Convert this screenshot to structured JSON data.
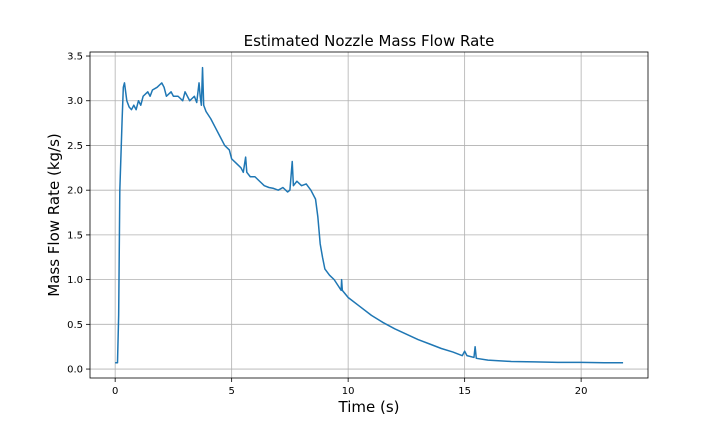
{
  "chart_data": {
    "type": "line",
    "title": "Estimated Nozzle Mass Flow Rate",
    "x_label": "Time (s)",
    "y_label": "Mass Flow Rate (kg/s)",
    "x": [
      0.0,
      0.1,
      0.15,
      0.2,
      0.3,
      0.35,
      0.4,
      0.5,
      0.6,
      0.7,
      0.8,
      0.9,
      1.0,
      1.1,
      1.2,
      1.4,
      1.5,
      1.6,
      1.8,
      2.0,
      2.1,
      2.2,
      2.4,
      2.5,
      2.7,
      2.9,
      3.0,
      3.2,
      3.4,
      3.5,
      3.6,
      3.65,
      3.7,
      3.75,
      3.8,
      3.9,
      4.1,
      4.3,
      4.5,
      4.7,
      4.9,
      5.0,
      5.2,
      5.4,
      5.5,
      5.6,
      5.65,
      5.8,
      6.0,
      6.2,
      6.4,
      6.6,
      6.8,
      7.0,
      7.2,
      7.4,
      7.5,
      7.6,
      7.65,
      7.8,
      8.0,
      8.2,
      8.4,
      8.6,
      8.7,
      8.8,
      8.9,
      9.0,
      9.2,
      9.4,
      9.6,
      9.7,
      9.72,
      9.75,
      10,
      10.5,
      11,
      11.5,
      12,
      12.5,
      13,
      13.5,
      14,
      14.5,
      14.9,
      15.0,
      15.1,
      15.4,
      15.45,
      15.5,
      16,
      17,
      18,
      19,
      20,
      21,
      21.8
    ],
    "series": [
      {
        "name": "Mass Flow Rate",
        "color": "#1f77b4",
        "values": [
          0.07,
          0.07,
          0.6,
          2.0,
          2.8,
          3.15,
          3.2,
          3.0,
          2.93,
          2.9,
          2.95,
          2.9,
          3.0,
          2.95,
          3.05,
          3.1,
          3.05,
          3.12,
          3.15,
          3.2,
          3.15,
          3.05,
          3.1,
          3.05,
          3.05,
          3.0,
          3.1,
          3.0,
          3.05,
          2.98,
          3.2,
          3.05,
          2.95,
          3.37,
          2.95,
          2.88,
          2.8,
          2.7,
          2.6,
          2.5,
          2.45,
          2.35,
          2.3,
          2.25,
          2.2,
          2.37,
          2.2,
          2.15,
          2.15,
          2.1,
          2.05,
          2.03,
          2.02,
          2.0,
          2.03,
          1.98,
          2.0,
          2.32,
          2.05,
          2.1,
          2.05,
          2.07,
          2.0,
          1.9,
          1.7,
          1.4,
          1.25,
          1.12,
          1.05,
          1.0,
          0.92,
          0.88,
          1.0,
          0.88,
          0.8,
          0.7,
          0.6,
          0.52,
          0.45,
          0.39,
          0.33,
          0.28,
          0.23,
          0.19,
          0.15,
          0.2,
          0.15,
          0.13,
          0.25,
          0.12,
          0.1,
          0.085,
          0.08,
          0.075,
          0.075,
          0.07,
          0.07
        ]
      }
    ],
    "xlim": [
      -1.08,
      22.87
    ],
    "ylim": [
      -0.1,
      3.545
    ],
    "xticks": [
      0,
      5,
      10,
      15,
      20
    ],
    "yticks": [
      {
        "value": 0,
        "label": "0.0"
      },
      {
        "value": 0.5,
        "label": "0.5"
      },
      {
        "value": 1,
        "label": "1.0"
      },
      {
        "value": 1.5,
        "label": "1.5"
      },
      {
        "value": 2,
        "label": "2.0"
      },
      {
        "value": 2.5,
        "label": "2.5"
      },
      {
        "value": 3,
        "label": "3.0"
      },
      {
        "value": 3.5,
        "label": "3.5"
      }
    ],
    "grid": true
  }
}
